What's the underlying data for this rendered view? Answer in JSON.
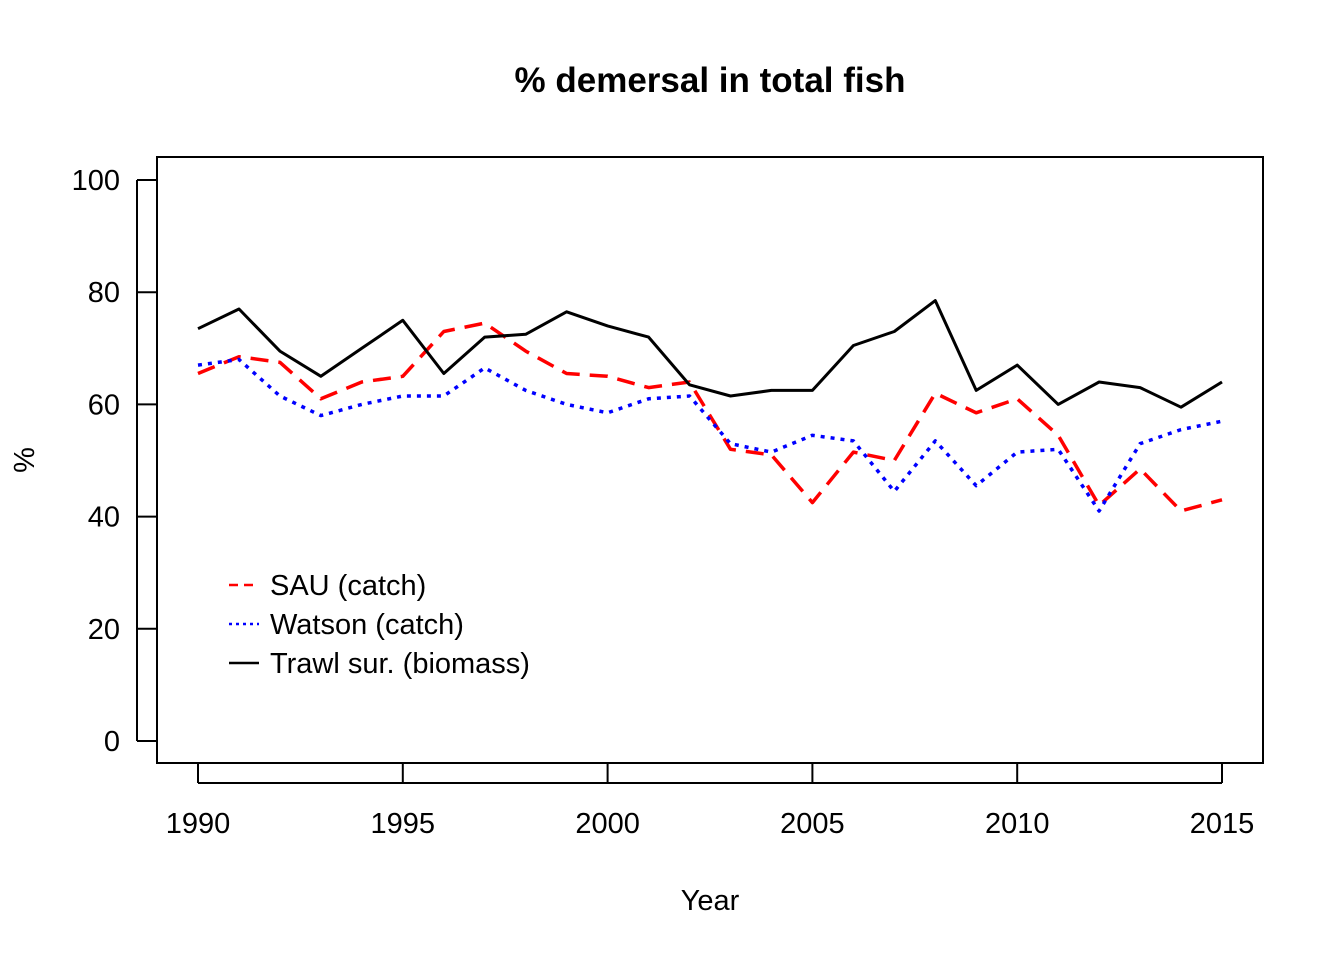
{
  "chart_data": {
    "type": "line",
    "title": "% demersal in total fish",
    "xlabel": "Year",
    "ylabel": "%",
    "xlim": [
      1990,
      2015
    ],
    "ylim": [
      0,
      100
    ],
    "x_ticks": [
      1990,
      1995,
      2000,
      2005,
      2010,
      2015
    ],
    "y_ticks": [
      0,
      20,
      40,
      60,
      80,
      100
    ],
    "x": [
      1990,
      1991,
      1992,
      1993,
      1994,
      1995,
      1996,
      1997,
      1998,
      1999,
      2000,
      2001,
      2002,
      2003,
      2004,
      2005,
      2006,
      2007,
      2008,
      2009,
      2010,
      2011,
      2012,
      2013,
      2014,
      2015
    ],
    "series": [
      {
        "name": "SAU (catch)",
        "color": "#ff0000",
        "line_style": "dashed",
        "values": [
          65.5,
          68.5,
          67.5,
          61,
          64,
          65,
          73,
          74.5,
          69.5,
          65.5,
          65,
          63,
          64,
          52,
          51,
          42.5,
          51.5,
          50,
          62,
          58.5,
          61,
          54.5,
          42,
          48.5,
          41,
          43
        ]
      },
      {
        "name": "Watson (catch)",
        "color": "#0000ff",
        "line_style": "dotted",
        "values": [
          67,
          68,
          61.5,
          58,
          60,
          61.5,
          61.5,
          66.5,
          62.5,
          60,
          58.5,
          61,
          61.5,
          53,
          51.5,
          54.5,
          53.5,
          44.5,
          53.5,
          45.5,
          51.5,
          52,
          41,
          53,
          55.5,
          57
        ]
      },
      {
        "name": "Trawl sur. (biomass)",
        "color": "#000000",
        "line_style": "solid",
        "values": [
          73.5,
          77,
          69.5,
          65,
          70,
          75,
          65.5,
          72,
          72.5,
          76.5,
          74,
          72,
          63.5,
          61.5,
          62.5,
          62.5,
          70.5,
          73,
          78.5,
          62.5,
          67,
          60,
          64,
          63,
          59.5,
          64
        ]
      }
    ],
    "legend_position": "bottom-left"
  }
}
